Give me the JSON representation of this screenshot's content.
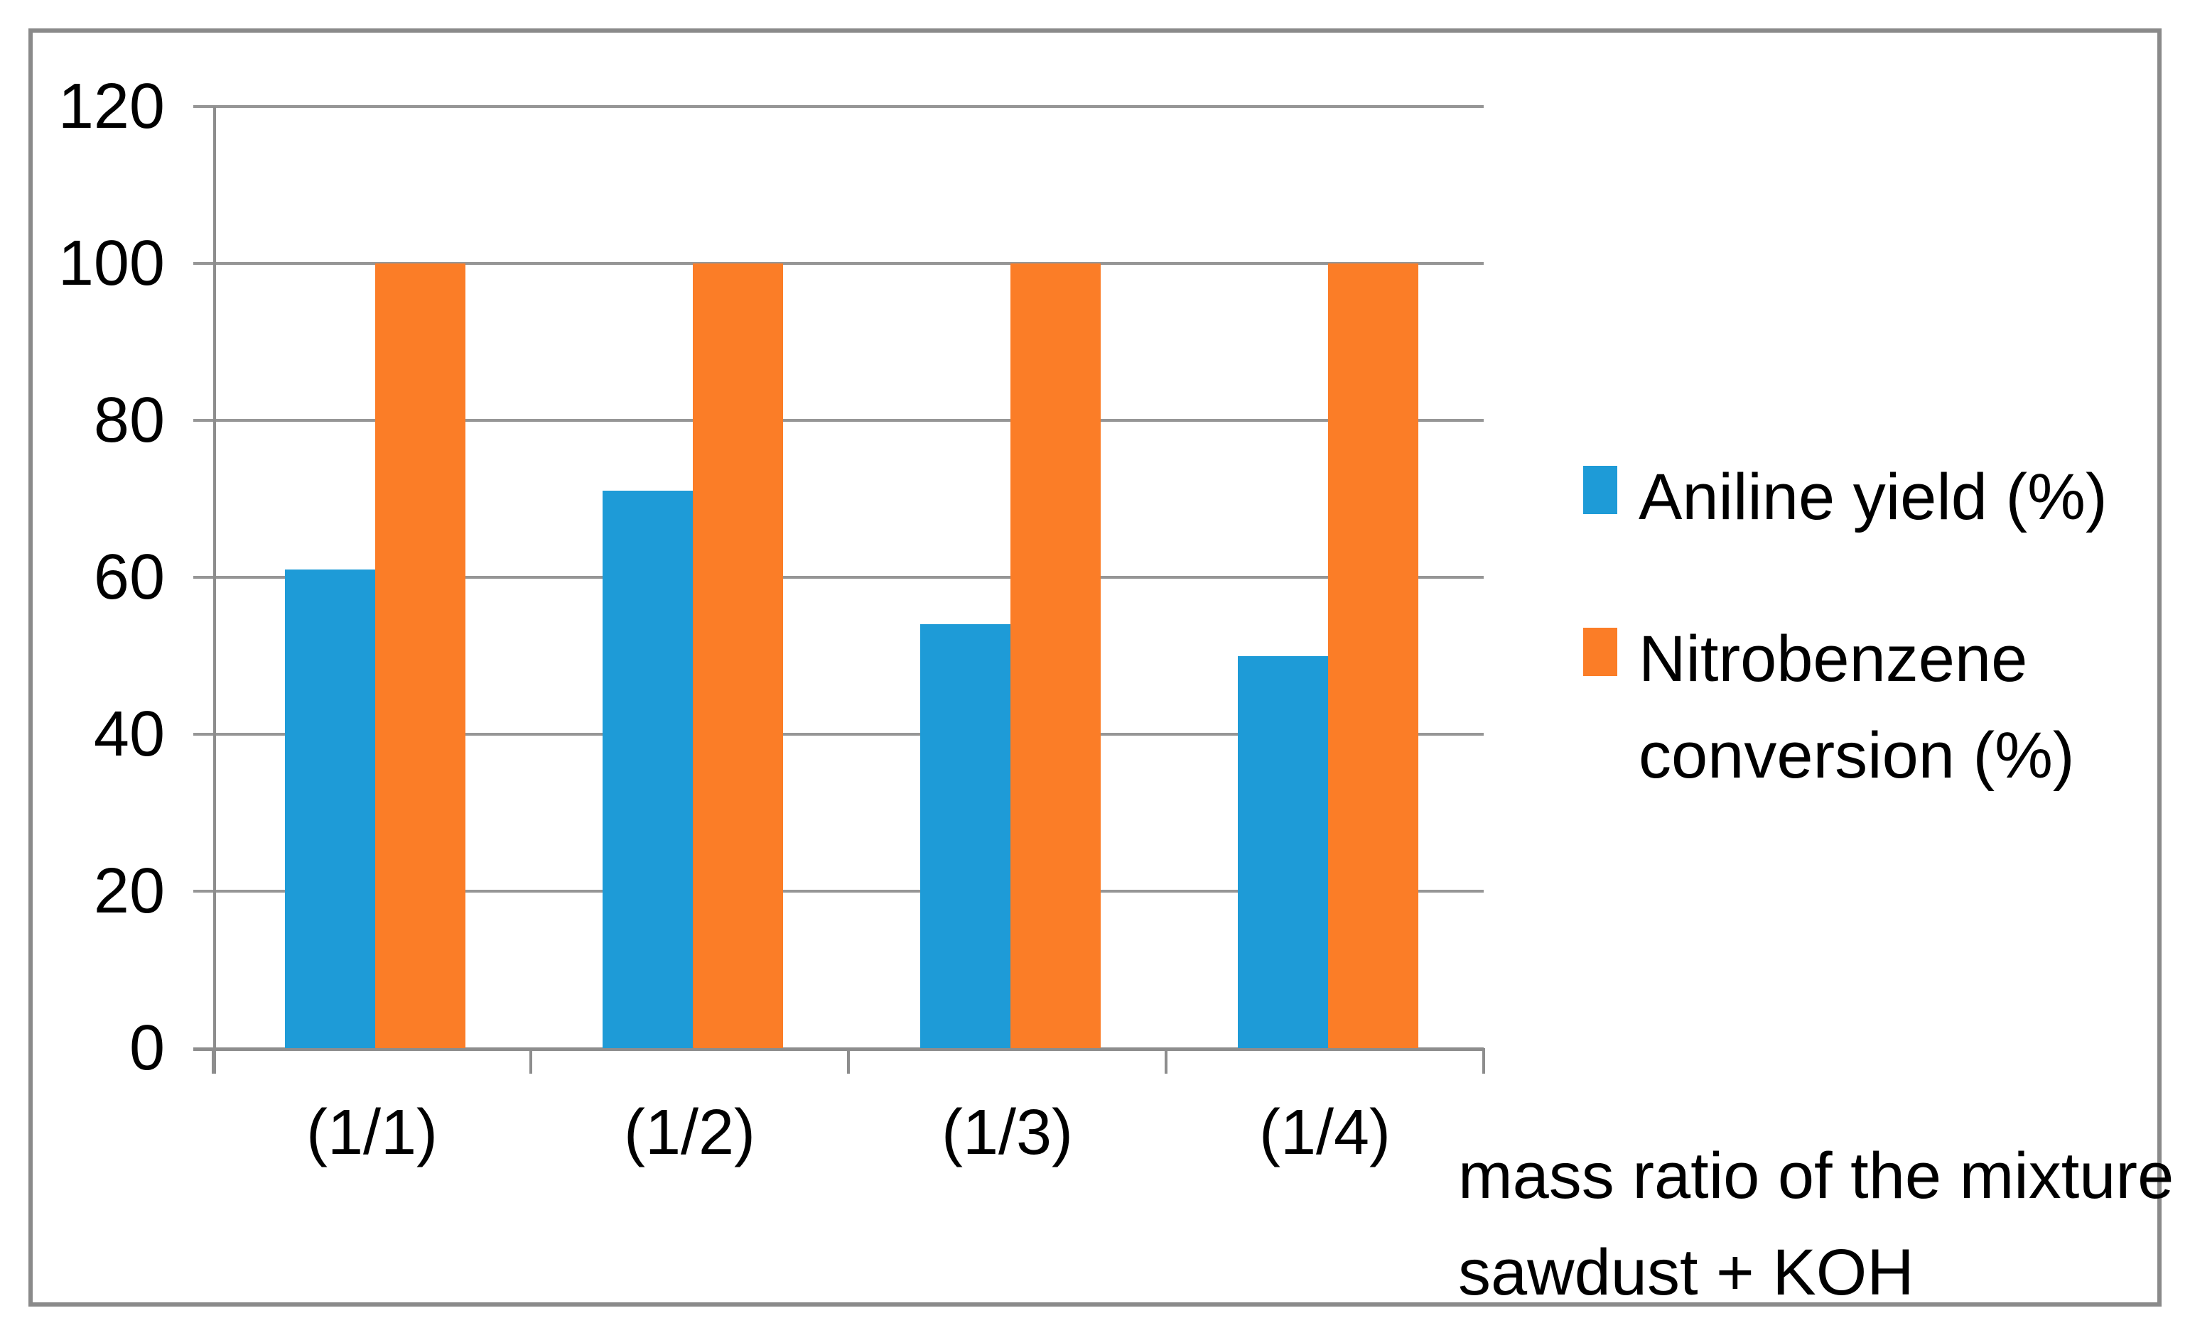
{
  "chart_data": {
    "type": "bar",
    "title": "",
    "categories": [
      "(1/1)",
      "(1/2)",
      "(1/3)",
      "(1/4)"
    ],
    "series": [
      {
        "name": "Aniline yield (%)",
        "color": "#1E9BD7",
        "values": [
          61,
          71,
          54,
          50
        ]
      },
      {
        "name": "Nitrobenzene conversion (%)",
        "color": "#FB7D27",
        "values": [
          100,
          100,
          100,
          100
        ]
      }
    ],
    "xlabel": "mass ratio of the mixture sawdust + KOH",
    "ylabel": "",
    "ylim": [
      0,
      120
    ],
    "yticks": [
      0,
      20,
      40,
      60,
      80,
      100,
      120
    ],
    "grid": true,
    "legend_position": "right",
    "colors": {
      "gridline": "#969696",
      "axis": "#8D8D8D",
      "frame_border": "#8A8A8A",
      "text": "#000000",
      "background": "#FFFFFF"
    }
  }
}
